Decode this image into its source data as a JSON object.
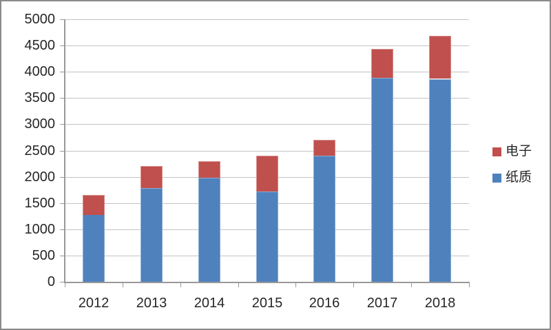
{
  "chart_data": {
    "type": "bar",
    "stacked": true,
    "title": "",
    "categories": [
      "2012",
      "2013",
      "2014",
      "2015",
      "2016",
      "2017",
      "2018"
    ],
    "series": [
      {
        "name": "纸质",
        "color": "#4F81BD",
        "values": [
          1280,
          1780,
          1980,
          1720,
          2400,
          3880,
          3860
        ]
      },
      {
        "name": "电子",
        "color": "#C0504D",
        "values": [
          380,
          420,
          320,
          680,
          300,
          550,
          820
        ]
      }
    ],
    "stack_totals": [
      1660,
      2200,
      2300,
      2400,
      2700,
      4430,
      4680
    ],
    "xlabel": "",
    "ylabel": "",
    "ylim": [
      0,
      5000
    ],
    "ytick_step": 500,
    "yticks": [
      "0",
      "500",
      "1000",
      "1500",
      "2000",
      "2500",
      "3000",
      "3500",
      "4000",
      "4500",
      "5000"
    ],
    "grid": true,
    "legend_position": "right",
    "legend_order": [
      "电子",
      "纸质"
    ]
  },
  "colors": {
    "paper_series": "#4F81BD",
    "electronic_series": "#C0504D",
    "gridline": "#C3C3C3",
    "axis": "#989898",
    "text": "#262626",
    "frame_border": "#8A8A8A",
    "background": "#FFFFFF"
  }
}
